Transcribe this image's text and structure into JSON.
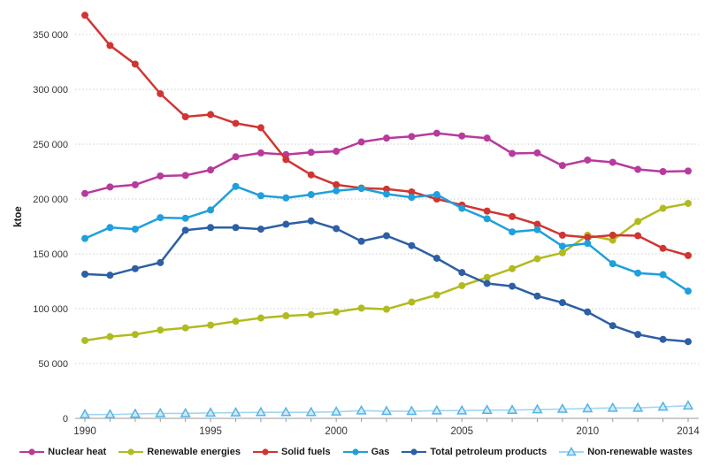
{
  "chart_data": {
    "type": "line",
    "title": "",
    "ylabel": "ktoe",
    "xlabel": "",
    "grid": "horizontal-dotted",
    "legend_position": "bottom",
    "ylim": [
      0,
      350000
    ],
    "ytick_step": 50000,
    "ytick_labels": [
      "0",
      "50 000",
      "100 000",
      "150 000",
      "200 000",
      "250 000",
      "300 000",
      "350 000"
    ],
    "x_tick_labels": [
      "1990",
      "1995",
      "2000",
      "2005",
      "2010",
      "2014"
    ],
    "years": [
      1990,
      1991,
      1992,
      1993,
      1994,
      1995,
      1996,
      1997,
      1998,
      1999,
      2000,
      2001,
      2002,
      2003,
      2004,
      2005,
      2006,
      2007,
      2008,
      2009,
      2010,
      2011,
      2012,
      2013,
      2014
    ],
    "axis_color": "#999999",
    "grid_color": "#cccccc",
    "tick_text_color": "#333333",
    "series": [
      {
        "name": "Nuclear heat",
        "color": "#b83a9c",
        "marker": "circle",
        "values": [
          205000,
          211000,
          213000,
          221000,
          221500,
          226500,
          238500,
          242000,
          240500,
          242500,
          243500,
          252000,
          255500,
          257000,
          260000,
          257500,
          255500,
          241500,
          242000,
          230500,
          235500,
          233500,
          227000,
          225000,
          225500
        ]
      },
      {
        "name": "Renewable energies",
        "color": "#b1bb1f",
        "marker": "circle",
        "values": [
          71000,
          74500,
          76500,
          80500,
          82500,
          85000,
          88500,
          91500,
          93500,
          94500,
          97000,
          100500,
          99500,
          106000,
          112500,
          121000,
          128500,
          136500,
          145500,
          151000,
          167000,
          162500,
          179500,
          191500,
          196000
        ]
      },
      {
        "name": "Solid fuels",
        "color": "#d03532",
        "marker": "circle",
        "values": [
          367500,
          340000,
          323000,
          296000,
          275000,
          277000,
          269000,
          265000,
          236000,
          222000,
          213000,
          210000,
          209000,
          206500,
          200000,
          194500,
          189000,
          184000,
          177000,
          167000,
          165000,
          167000,
          166500,
          155000,
          148500
        ]
      },
      {
        "name": "Gas",
        "color": "#1ea0dc",
        "marker": "circle",
        "values": [
          164000,
          174000,
          172500,
          183000,
          182500,
          190000,
          211500,
          203000,
          201000,
          204000,
          207500,
          209500,
          204500,
          201500,
          204000,
          191500,
          182000,
          170000,
          172000,
          157000,
          159500,
          141000,
          132500,
          131000,
          116000
        ]
      },
      {
        "name": "Total petroleum products",
        "color": "#2d5fa5",
        "marker": "circle",
        "values": [
          131500,
          130500,
          136500,
          142000,
          171500,
          174000,
          174000,
          172500,
          177000,
          180000,
          173000,
          161500,
          166500,
          157500,
          146000,
          133000,
          123000,
          120500,
          111500,
          105500,
          97000,
          84500,
          76500,
          72000,
          70000
        ]
      },
      {
        "name": "Non-renewable wastes",
        "color": "#9fd6f2",
        "marker": "triangle",
        "marker_fill": "#cfeaf8",
        "marker_stroke": "#54b4e6",
        "values": [
          3500,
          3500,
          4000,
          4500,
          4500,
          5000,
          5200,
          5500,
          5500,
          5500,
          6000,
          7000,
          6500,
          6500,
          7000,
          7000,
          7500,
          7500,
          8000,
          8500,
          9000,
          9500,
          9500,
          10500,
          11500
        ]
      }
    ]
  }
}
